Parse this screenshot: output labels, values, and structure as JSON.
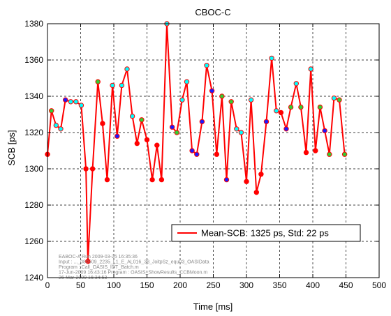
{
  "chart_data": {
    "type": "line",
    "title": "CBOC-C",
    "xlabel": "Time [ms]",
    "ylabel": "SCB [ps]",
    "xlim": [
      0,
      500
    ],
    "ylim": [
      1240,
      1380
    ],
    "xticks": [
      0,
      50,
      100,
      150,
      200,
      250,
      300,
      350,
      400,
      450,
      500
    ],
    "yticks": [
      1240,
      1260,
      1280,
      1300,
      1320,
      1340,
      1360,
      1380
    ],
    "grid": true,
    "legend_position": "lower-right",
    "line_color": "#ff0000",
    "marker_colors": {
      "cyan": "#00ffff",
      "green": "#33cc33",
      "blue": "#1a1aff",
      "red": "#ff0000"
    },
    "series": [
      {
        "name": "Mean-SCB: 1325 ps, Std: 22 ps",
        "points": [
          {
            "x": 0,
            "y": 1308,
            "marker": "red"
          },
          {
            "x": 6,
            "y": 1332,
            "marker": "green"
          },
          {
            "x": 13,
            "y": 1324,
            "marker": "cyan"
          },
          {
            "x": 20,
            "y": 1322,
            "marker": "cyan"
          },
          {
            "x": 27,
            "y": 1338,
            "marker": "blue"
          },
          {
            "x": 35,
            "y": 1337,
            "marker": "cyan"
          },
          {
            "x": 43,
            "y": 1337,
            "marker": "cyan"
          },
          {
            "x": 51,
            "y": 1335,
            "marker": "cyan"
          },
          {
            "x": 58,
            "y": 1300,
            "marker": "red"
          },
          {
            "x": 61,
            "y": 1249,
            "marker": "red"
          },
          {
            "x": 68,
            "y": 1300,
            "marker": "red"
          },
          {
            "x": 76,
            "y": 1348,
            "marker": "green"
          },
          {
            "x": 83,
            "y": 1325,
            "marker": "red"
          },
          {
            "x": 90,
            "y": 1294,
            "marker": "red"
          },
          {
            "x": 98,
            "y": 1346,
            "marker": "cyan"
          },
          {
            "x": 105,
            "y": 1318,
            "marker": "blue"
          },
          {
            "x": 112,
            "y": 1346,
            "marker": "cyan"
          },
          {
            "x": 120,
            "y": 1355,
            "marker": "cyan"
          },
          {
            "x": 128,
            "y": 1329,
            "marker": "cyan"
          },
          {
            "x": 135,
            "y": 1314,
            "marker": "red"
          },
          {
            "x": 142,
            "y": 1327,
            "marker": "green"
          },
          {
            "x": 150,
            "y": 1316,
            "marker": "red"
          },
          {
            "x": 158,
            "y": 1294,
            "marker": "red"
          },
          {
            "x": 165,
            "y": 1313,
            "marker": "red"
          },
          {
            "x": 172,
            "y": 1294,
            "marker": "red"
          },
          {
            "x": 180,
            "y": 1380,
            "marker": "cyan"
          },
          {
            "x": 188,
            "y": 1323,
            "marker": "blue"
          },
          {
            "x": 195,
            "y": 1320,
            "marker": "green"
          },
          {
            "x": 203,
            "y": 1338,
            "marker": "cyan"
          },
          {
            "x": 210,
            "y": 1348,
            "marker": "cyan"
          },
          {
            "x": 218,
            "y": 1310,
            "marker": "blue"
          },
          {
            "x": 225,
            "y": 1308,
            "marker": "blue"
          },
          {
            "x": 233,
            "y": 1326,
            "marker": "blue"
          },
          {
            "x": 240,
            "y": 1357,
            "marker": "cyan"
          },
          {
            "x": 248,
            "y": 1343,
            "marker": "blue"
          },
          {
            "x": 255,
            "y": 1308,
            "marker": "red"
          },
          {
            "x": 263,
            "y": 1340,
            "marker": "green"
          },
          {
            "x": 270,
            "y": 1294,
            "marker": "blue"
          },
          {
            "x": 277,
            "y": 1337,
            "marker": "green"
          },
          {
            "x": 285,
            "y": 1322,
            "marker": "cyan"
          },
          {
            "x": 292,
            "y": 1320,
            "marker": "cyan"
          },
          {
            "x": 300,
            "y": 1293,
            "marker": "red"
          },
          {
            "x": 307,
            "y": 1338,
            "marker": "cyan"
          },
          {
            "x": 315,
            "y": 1287,
            "marker": "red"
          },
          {
            "x": 322,
            "y": 1297,
            "marker": "red"
          },
          {
            "x": 330,
            "y": 1326,
            "marker": "blue"
          },
          {
            "x": 338,
            "y": 1361,
            "marker": "cyan"
          },
          {
            "x": 345,
            "y": 1332,
            "marker": "cyan"
          },
          {
            "x": 352,
            "y": 1331,
            "marker": "red"
          },
          {
            "x": 360,
            "y": 1322,
            "marker": "blue"
          },
          {
            "x": 367,
            "y": 1334,
            "marker": "green"
          },
          {
            "x": 375,
            "y": 1347,
            "marker": "cyan"
          },
          {
            "x": 382,
            "y": 1334,
            "marker": "green"
          },
          {
            "x": 390,
            "y": 1309,
            "marker": "red"
          },
          {
            "x": 397,
            "y": 1355,
            "marker": "cyan"
          },
          {
            "x": 404,
            "y": 1310,
            "marker": "red"
          },
          {
            "x": 411,
            "y": 1334,
            "marker": "green"
          },
          {
            "x": 418,
            "y": 1321,
            "marker": "blue"
          },
          {
            "x": 425,
            "y": 1308,
            "marker": "green"
          },
          {
            "x": 432,
            "y": 1339,
            "marker": "cyan"
          },
          {
            "x": 440,
            "y": 1338,
            "marker": "green"
          },
          {
            "x": 448,
            "y": 1308,
            "marker": "green"
          }
        ]
      }
    ],
    "annotation_lines": [
      "EABOC-A Run      2009-03-26 16:35:36",
      "Input       : ..._080509_2235_L1_E_AL016_38_JoitpSz_equ03_OASIData",
      "Program     : Call_OASIS_IDT_Batch.m",
      "17-Jun-2009 16:43:16 Program : OASIS_ShowResults_CCBMoon.m",
      "26-Mar-2009 16:34:53"
    ]
  }
}
